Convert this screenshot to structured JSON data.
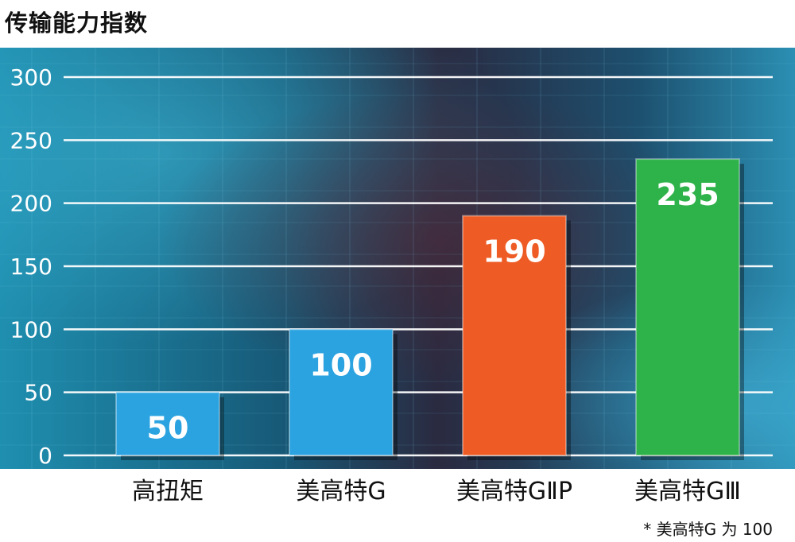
{
  "page": {
    "title": "传输能力指数",
    "footnote": "* 美高特G 为 100"
  },
  "chart_data": {
    "type": "bar",
    "title": "传输能力指数",
    "categories": [
      "高扭矩",
      "美高特G",
      "美高特GⅡP",
      "美高特GⅢ"
    ],
    "values": [
      50,
      100,
      190,
      235
    ],
    "data_labels": [
      "50",
      "100",
      "190",
      "235"
    ],
    "yticks": [
      "0",
      "50",
      "100",
      "150",
      "200",
      "250",
      "300"
    ],
    "ylim": [
      0,
      300
    ],
    "grid": true,
    "colors": [
      "#2ba3e0",
      "#2ba3e0",
      "#ee5b24",
      "#2eb24a"
    ],
    "background": "#1d6f8c",
    "note": "* 美高特G 为 100"
  }
}
